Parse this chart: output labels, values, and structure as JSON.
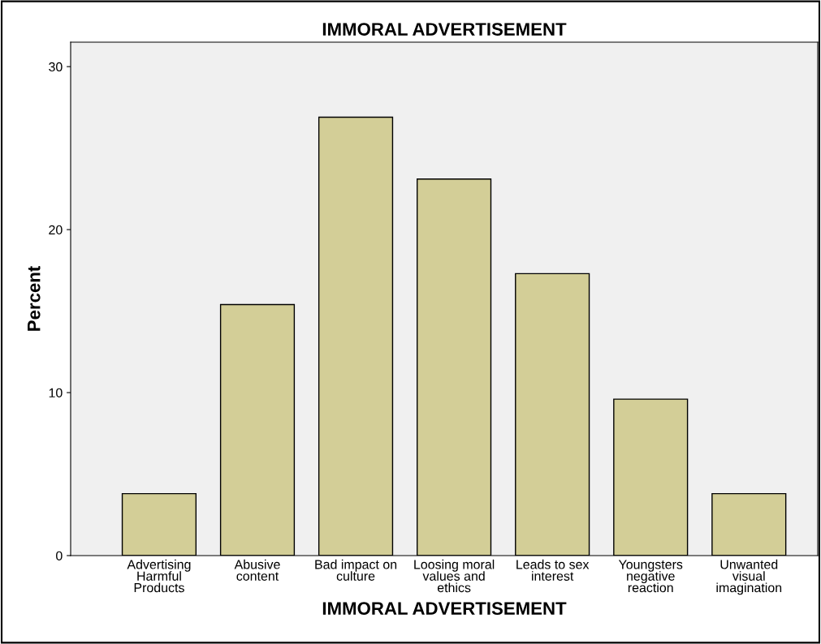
{
  "chart_data": {
    "type": "bar",
    "title": "IMMORAL ADVERTISEMENT",
    "xlabel": "IMMORAL ADVERTISEMENT",
    "ylabel": "Percent",
    "categories": [
      "Advertising\nHarmful\nProducts",
      "Abusive\ncontent",
      "Bad impact on\nculture",
      "Loosing moral\nvalues and\nethics",
      "Leads to sex\ninterest",
      "Youngsters\nnegative\nreaction",
      "Unwanted\nvisual\nimagination"
    ],
    "values": [
      3.8,
      15.4,
      26.9,
      23.1,
      17.3,
      9.6,
      3.8
    ],
    "color": "#d3ce97",
    "ylim": [
      0,
      31.5
    ],
    "yticks": [
      0,
      10,
      20,
      30
    ],
    "grid": false,
    "legend": false
  }
}
